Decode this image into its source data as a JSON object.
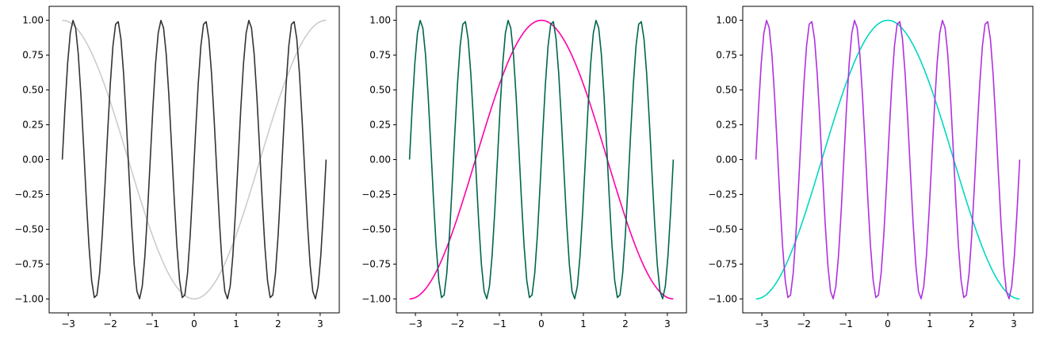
{
  "chart_data": [
    {
      "type": "line",
      "title": "",
      "xlabel": "",
      "ylabel": "",
      "xlim": [
        -3.455,
        3.455
      ],
      "ylim": [
        -1.1,
        1.1
      ],
      "xticks": [
        "−3",
        "−2",
        "−1",
        "0",
        "1",
        "2",
        "3"
      ],
      "yticks": [
        "1.00",
        "0.75",
        "0.50",
        "0.25",
        "0.00",
        "−0.25",
        "−0.50",
        "−0.75",
        "−1.00"
      ],
      "grid": false,
      "series": [
        {
          "function": "sin(6x)",
          "x_range": [
            -3.1416,
            3.1416
          ],
          "color": "#333333"
        },
        {
          "function": "-cos(x)",
          "x_range": [
            -3.1416,
            3.1416
          ],
          "color": "#cccccc"
        }
      ]
    },
    {
      "type": "line",
      "title": "",
      "xlabel": "",
      "ylabel": "",
      "xlim": [
        -3.455,
        3.455
      ],
      "ylim": [
        -1.1,
        1.1
      ],
      "xticks": [
        "−3",
        "−2",
        "−1",
        "0",
        "1",
        "2",
        "3"
      ],
      "yticks": [
        "1.00",
        "0.75",
        "0.50",
        "0.25",
        "0.00",
        "−0.25",
        "−0.50",
        "−0.75",
        "−1.00"
      ],
      "grid": false,
      "series": [
        {
          "function": "sin(6x)",
          "x_range": [
            -3.1416,
            3.1416
          ],
          "color": "#00664d"
        },
        {
          "function": "cos(x)",
          "x_range": [
            -3.1416,
            3.1416
          ],
          "color": "#ff00a8"
        }
      ]
    },
    {
      "type": "line",
      "title": "",
      "xlabel": "",
      "ylabel": "",
      "xlim": [
        -3.455,
        3.455
      ],
      "ylim": [
        -1.1,
        1.1
      ],
      "xticks": [
        "−3",
        "−2",
        "−1",
        "0",
        "1",
        "2",
        "3"
      ],
      "yticks": [
        "1.00",
        "0.75",
        "0.50",
        "0.25",
        "0.00",
        "−0.25",
        "−0.50",
        "−0.75",
        "−1.00"
      ],
      "grid": false,
      "series": [
        {
          "function": "sin(6x)",
          "x_range": [
            -3.1416,
            3.1416
          ],
          "color": "#b030e0"
        },
        {
          "function": "cos(x)",
          "x_range": [
            -3.1416,
            3.1416
          ],
          "color": "#00d8c0"
        }
      ]
    }
  ]
}
